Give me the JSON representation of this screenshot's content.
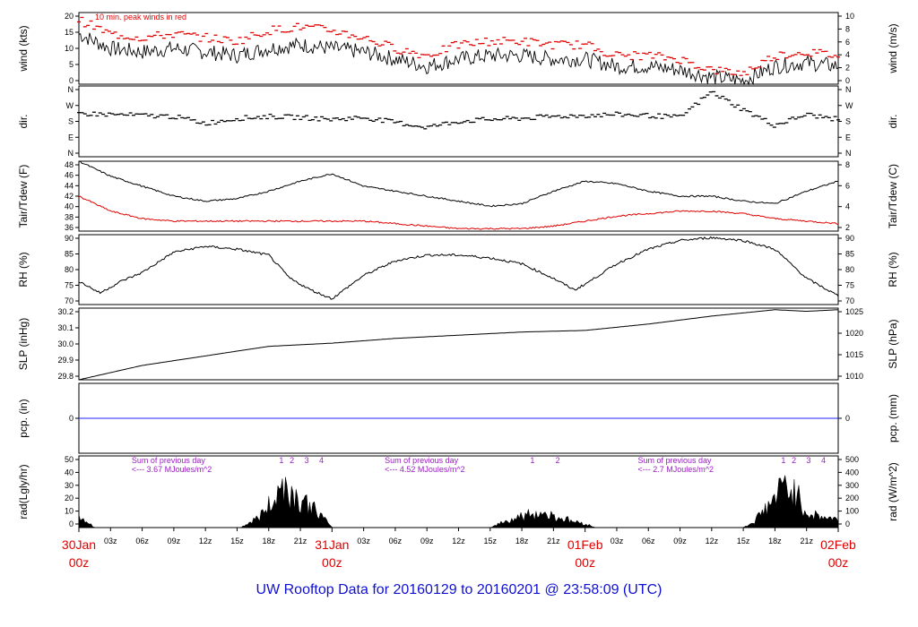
{
  "title": "UW Rooftop Data for 20160129  to  20160201 @ 23:58:09  (UTC)",
  "chart_data": {
    "type": "line",
    "x_range_hours": [
      0,
      72
    ],
    "time_ticks": [
      "03z",
      "06z",
      "09z",
      "12z",
      "15z",
      "18z",
      "21z",
      "03z",
      "06z",
      "09z",
      "12z",
      "15z",
      "18z",
      "21z",
      "03z",
      "06z",
      "09z",
      "12z",
      "15z",
      "18z",
      "21z"
    ],
    "date_marks": [
      {
        "hour": 0,
        "date": "30Jan",
        "time": "00z"
      },
      {
        "hour": 24,
        "date": "31Jan",
        "time": "00z"
      },
      {
        "hour": 48,
        "date": "01Feb",
        "time": "00z"
      },
      {
        "hour": 72,
        "date": "02Feb",
        "time": "00z"
      }
    ],
    "panels": [
      {
        "id": "wind",
        "ylabel_left": "wind (kts)",
        "ylabel_right": "wind (m/s)",
        "ylim": [
          0,
          20
        ],
        "left_ticks": [
          "0",
          "5",
          "10",
          "15",
          "20"
        ],
        "right_ticks": [
          "0",
          "2",
          "4",
          "6",
          "8",
          "10"
        ],
        "annotation": "10 min. peak winds in red",
        "series": [
          {
            "name": "wind speed",
            "color": "#000000",
            "hours": [
              0,
              3,
              6,
              9,
              12,
              15,
              18,
              21,
              24,
              27,
              30,
              33,
              36,
              39,
              42,
              45,
              48,
              51,
              54,
              57,
              60,
              63,
              66,
              69,
              72
            ],
            "values": [
              14,
              10,
              9,
              10,
              9,
              8,
              10,
              11,
              10,
              9,
              7,
              5,
              7,
              8,
              8,
              7,
              7,
              5,
              5,
              4,
              2,
              1,
              5,
              6,
              5
            ]
          },
          {
            "name": "10 min peak",
            "color": "#e00000",
            "hours": [
              0,
              3,
              6,
              9,
              12,
              15,
              18,
              21,
              24,
              27,
              30,
              33,
              36,
              39,
              42,
              45,
              48,
              51,
              54,
              57,
              60,
              63,
              66,
              69,
              72
            ],
            "values": [
              18,
              14,
              13,
              14,
              13,
              12,
              15,
              16,
              15,
              13,
              10,
              8,
              11,
              12,
              12,
              11,
              11,
              8,
              8,
              7,
              4,
              3,
              8,
              9,
              8
            ]
          }
        ]
      },
      {
        "id": "dir",
        "ylabel_left": "dir.",
        "ylabel_right": "dir.",
        "ylim": [
          0,
          360
        ],
        "left_ticks": [
          "N",
          "E",
          "S",
          "W",
          "N"
        ],
        "right_ticks": [
          "N",
          "E",
          "S",
          "W",
          "N"
        ],
        "series": [
          {
            "name": "wind direction",
            "color": "#000000",
            "hours": [
              0,
              3,
              6,
              9,
              12,
              15,
              18,
              21,
              24,
              27,
              30,
              33,
              36,
              39,
              42,
              45,
              48,
              51,
              54,
              57,
              60,
              63,
              66,
              69,
              72
            ],
            "values": [
              220,
              215,
              210,
              205,
              170,
              195,
              205,
              200,
              190,
              200,
              175,
              150,
              180,
              190,
              195,
              205,
              210,
              215,
              210,
              200,
              330,
              240,
              160,
              215,
              190
            ]
          }
        ]
      },
      {
        "id": "temp",
        "ylabel_left": "Tair/Tdew (F)",
        "ylabel_right": "Tair/Tdew (C)",
        "ylim": [
          35,
          49
        ],
        "left_ticks": [
          "36",
          "38",
          "40",
          "42",
          "44",
          "46",
          "48"
        ],
        "right_ticks": [
          "2",
          "4",
          "6",
          "8"
        ],
        "series": [
          {
            "name": "Tair",
            "color": "#000000",
            "hours": [
              0,
              3,
              6,
              9,
              12,
              15,
              18,
              21,
              24,
              27,
              30,
              33,
              36,
              39,
              42,
              45,
              48,
              51,
              54,
              57,
              60,
              63,
              66,
              69,
              72
            ],
            "values": [
              49,
              46,
              44,
              42,
              41,
              41.5,
              43,
              45,
              46.5,
              44,
              43,
              42,
              41,
              40,
              40.5,
              43,
              45,
              44.5,
              43,
              42,
              42,
              41,
              40.5,
              43,
              45
            ]
          },
          {
            "name": "Tdew",
            "color": "#e00000",
            "hours": [
              0,
              3,
              6,
              9,
              12,
              15,
              18,
              21,
              24,
              27,
              30,
              33,
              36,
              39,
              42,
              45,
              48,
              51,
              54,
              57,
              60,
              63,
              66,
              69,
              72
            ],
            "values": [
              42,
              39,
              37.5,
              37,
              37,
              37,
              37,
              37,
              37,
              37,
              36.5,
              36,
              35.5,
              35.5,
              35.5,
              36,
              37,
              38,
              38.5,
              39,
              39,
              38.5,
              37.5,
              37,
              36.5
            ]
          }
        ]
      },
      {
        "id": "rh",
        "ylabel_left": "RH (%)",
        "ylabel_right": "RH (%)",
        "ylim": [
          67,
          91
        ],
        "left_ticks": [
          "70",
          "75",
          "80",
          "85",
          "90"
        ],
        "right_ticks": [
          "70",
          "75",
          "80",
          "85",
          "90"
        ],
        "series": [
          {
            "name": "RH",
            "color": "#000000",
            "hours": [
              0,
              2,
              4,
              6,
              9,
              12,
              15,
              18,
              20,
              22,
              24,
              27,
              30,
              33,
              36,
              39,
              42,
              45,
              47,
              48,
              51,
              54,
              57,
              60,
              63,
              66,
              69,
              72
            ],
            "values": [
              75,
              71,
              75,
              78,
              85,
              87,
              86,
              84,
              76,
              72,
              69,
              77,
              82,
              84,
              84,
              83,
              81,
              76,
              72,
              74,
              81,
              86,
              89,
              90,
              89,
              86,
              76,
              70
            ]
          }
        ]
      },
      {
        "id": "slp",
        "ylabel_left": "SLP (inHg)",
        "ylabel_right": "SLP (hPa)",
        "ylim": [
          29.8,
          30.25
        ],
        "left_ticks": [
          "29.8",
          "29.9",
          "30.0",
          "30.1",
          "30.2"
        ],
        "right_ticks": [
          "1010",
          "1015",
          "1020",
          "1025"
        ],
        "series": [
          {
            "name": "SLP",
            "color": "#000000",
            "hours": [
              0,
              6,
              12,
              18,
              24,
              30,
              36,
              42,
              48,
              54,
              60,
              66,
              69,
              72
            ],
            "values": [
              29.8,
              29.89,
              29.95,
              30.01,
              30.03,
              30.06,
              30.08,
              30.1,
              30.11,
              30.15,
              30.2,
              30.24,
              30.23,
              30.24
            ]
          }
        ]
      },
      {
        "id": "pcp",
        "ylabel_left": "pcp. (in)",
        "ylabel_right": "pcp. (mm)",
        "ylim": [
          -1,
          1
        ],
        "left_ticks": [
          "0"
        ],
        "right_ticks": [
          "0"
        ],
        "series": [
          {
            "name": "precipitation",
            "color": "#2020ff",
            "hours": [
              0,
              72
            ],
            "values": [
              0,
              0
            ]
          }
        ]
      },
      {
        "id": "rad",
        "ylabel_left": "rad(Lgly/hr)",
        "ylabel_right": "rad (W/m^2)",
        "ylim": [
          0,
          50
        ],
        "left_ticks": [
          "0",
          "10",
          "20",
          "30",
          "40",
          "50"
        ],
        "right_ticks": [
          "0",
          "100",
          "200",
          "300",
          "400",
          "500"
        ],
        "daily_notes": [
          {
            "label": "Sum of previous day",
            "value": "<--- 3.67 MJoules/m^2",
            "hour": 5
          },
          {
            "label": "Sum of previous day",
            "value": "<--- 4.52 MJoules/m^2",
            "hour": 29
          },
          {
            "label": "Sum of previous day",
            "value": "<--- 2.7 MJoules/m^2",
            "hour": 53
          }
        ],
        "hour_marks": [
          {
            "label": "1",
            "hour": 19.2
          },
          {
            "label": "2",
            "hour": 20.2
          },
          {
            "label": "3",
            "hour": 21.6
          },
          {
            "label": "4",
            "hour": 23.0
          },
          {
            "label": "1",
            "hour": 43.0
          },
          {
            "label": "2",
            "hour": 45.4
          },
          {
            "label": "1",
            "hour": 66.8
          },
          {
            "label": "2",
            "hour": 67.8
          },
          {
            "label": "3",
            "hour": 69.2
          },
          {
            "label": "4",
            "hour": 70.6
          }
        ],
        "series": [
          {
            "name": "solar radiation",
            "color": "#000000",
            "fill": true,
            "hours": [
              0,
              0.5,
              1.5,
              15.3,
              16,
              17,
              18,
              19,
              19.5,
              20,
              21,
              22,
              23,
              24,
              39,
              40,
              42,
              43,
              44,
              45,
              46,
              47,
              48,
              49,
              63,
              64,
              65,
              66,
              67,
              68,
              69,
              70,
              71,
              72
            ],
            "values": [
              12,
              8,
              0,
              0,
              4,
              10,
              22,
              38,
              48,
              35,
              28,
              22,
              12,
              0,
              0,
              5,
              12,
              14,
              15,
              12,
              9,
              6,
              4,
              0,
              0,
              6,
              18,
              30,
              45,
              35,
              15,
              12,
              10,
              8
            ]
          }
        ]
      }
    ]
  }
}
